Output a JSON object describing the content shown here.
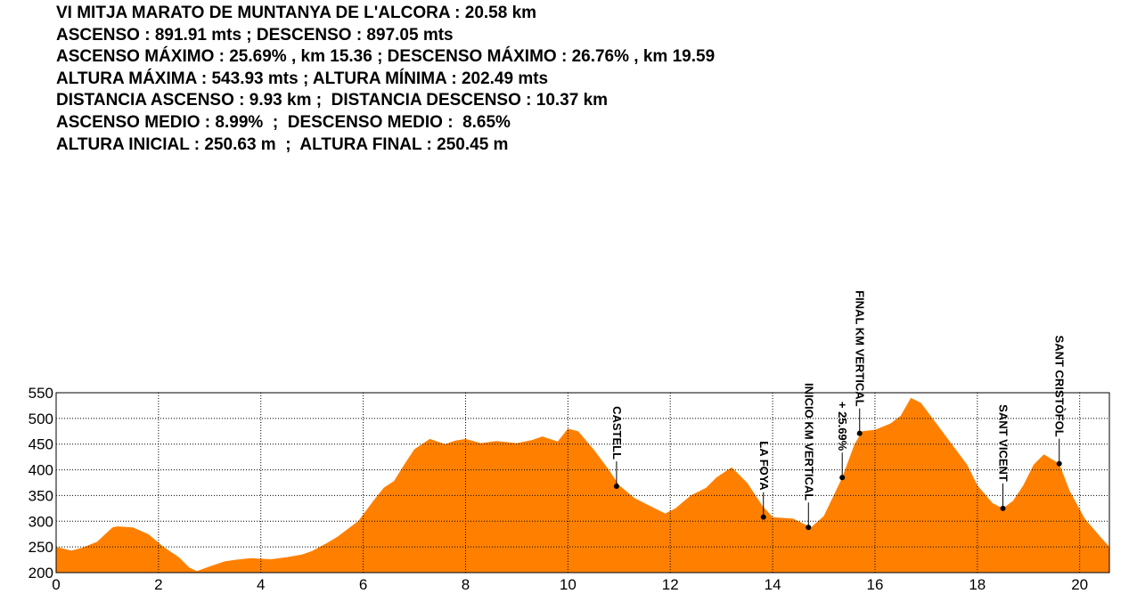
{
  "stats": [
    "VI MITJA MARATO DE MUNTANYA DE L'ALCORA : 20.58 km",
    "ASCENSO : 891.91 mts ; DESCENSO : 897.05 mts",
    "ASCENSO MÁXIMO : 25.69% , km 15.36 ; DESCENSO MÁXIMO : 26.76% , km 19.59",
    "ALTURA MÁXIMA : 543.93 mts ; ALTURA MÍNIMA : 202.49 mts",
    "DISTANCIA ASCENSO : 9.93 km ;  DISTANCIA DESCENSO : 10.37 km",
    "ASCENSO MEDIO : 8.99%  ;  DESCENSO MEDIO :  8.65%",
    "ALTURA INICIAL : 250.63 m  ;  ALTURA FINAL : 250.45 m"
  ],
  "chart_data": {
    "type": "area",
    "x_label": "",
    "y_label": "",
    "xlim": [
      0,
      20.58
    ],
    "ylim": [
      200,
      550
    ],
    "x_ticks": [
      0,
      2,
      4,
      6,
      8,
      10,
      12,
      14,
      16,
      18,
      20
    ],
    "y_ticks": [
      200,
      250,
      300,
      350,
      400,
      450,
      500,
      550
    ],
    "grid": true,
    "colors": {
      "fill": "#ff8000",
      "grid": "#000000",
      "background": "#ffffff"
    },
    "x": [
      0,
      0.3,
      0.5,
      0.8,
      1.1,
      1.2,
      1.5,
      1.8,
      2.1,
      2.4,
      2.6,
      2.75,
      3.0,
      3.3,
      3.5,
      3.8,
      4.2,
      4.5,
      4.8,
      5.0,
      5.3,
      5.5,
      5.7,
      5.9,
      6.0,
      6.2,
      6.4,
      6.6,
      6.8,
      7.0,
      7.3,
      7.6,
      7.8,
      8.0,
      8.3,
      8.6,
      9.0,
      9.3,
      9.5,
      9.8,
      10.0,
      10.2,
      10.5,
      10.8,
      11.0,
      11.3,
      11.6,
      11.9,
      12.1,
      12.4,
      12.7,
      12.9,
      13.2,
      13.5,
      13.8,
      14.0,
      14.4,
      14.75,
      15.0,
      15.36,
      15.6,
      15.75,
      16.0,
      16.3,
      16.5,
      16.7,
      16.9,
      17.2,
      17.5,
      17.8,
      18.0,
      18.3,
      18.5,
      18.7,
      18.9,
      19.1,
      19.3,
      19.6,
      19.8,
      20.1,
      20.4,
      20.58
    ],
    "y": [
      250,
      243,
      248,
      260,
      288,
      290,
      288,
      275,
      250,
      230,
      210,
      203,
      212,
      222,
      225,
      228,
      226,
      230,
      235,
      242,
      258,
      270,
      285,
      300,
      313,
      340,
      365,
      378,
      410,
      440,
      460,
      450,
      457,
      460,
      452,
      456,
      452,
      458,
      465,
      455,
      480,
      475,
      440,
      400,
      370,
      345,
      330,
      315,
      325,
      350,
      365,
      385,
      405,
      375,
      330,
      308,
      305,
      288,
      310,
      385,
      450,
      475,
      478,
      490,
      505,
      540,
      530,
      490,
      450,
      410,
      370,
      335,
      325,
      340,
      370,
      410,
      430,
      412,
      360,
      305,
      270,
      250
    ],
    "waypoints": [
      {
        "name": "CASTELL",
        "km": 10.95,
        "alt": 368
      },
      {
        "name": "LA FOYA",
        "km": 13.82,
        "alt": 308
      },
      {
        "name": "INICIO KM VERTICAL",
        "km": 14.7,
        "alt": 288
      },
      {
        "name": "+ 25.69%",
        "km": 15.36,
        "alt": 385
      },
      {
        "name": "FINAL KM VERTICAL",
        "km": 15.7,
        "alt": 471
      },
      {
        "name": "SANT VICENT",
        "km": 18.5,
        "alt": 325
      },
      {
        "name": "SANT CRISTÒFOL",
        "km": 19.6,
        "alt": 412
      }
    ]
  }
}
